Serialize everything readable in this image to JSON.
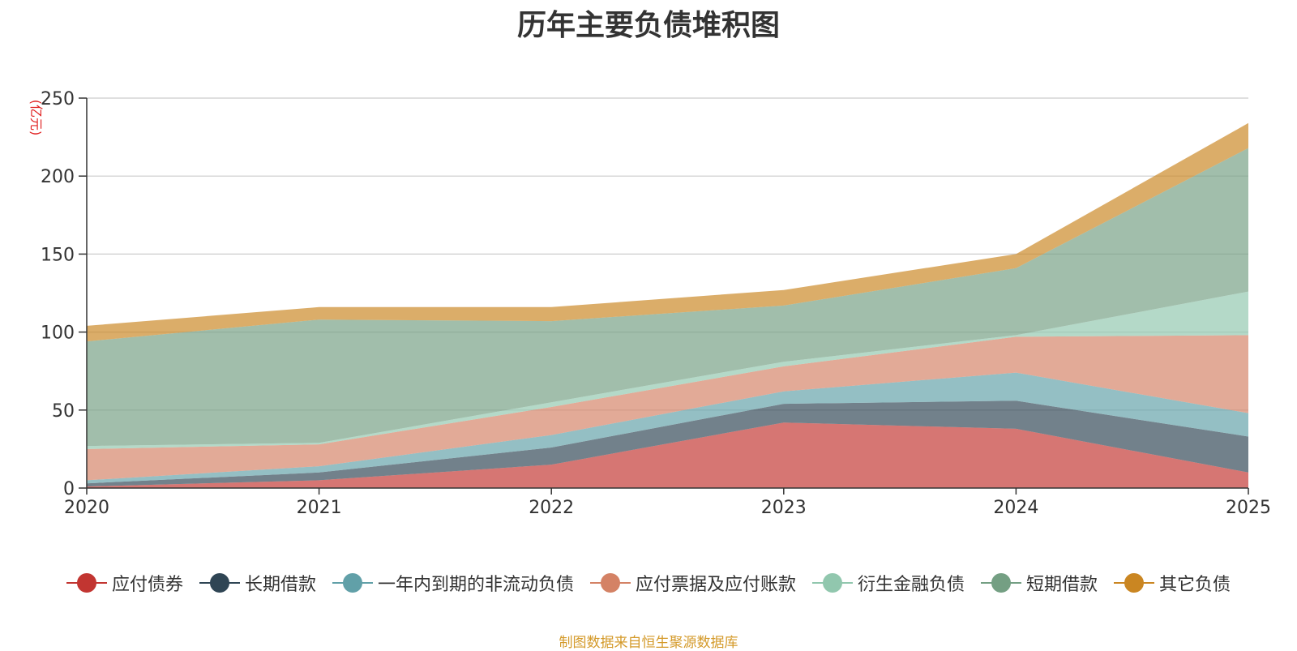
{
  "chart_data": {
    "type": "area",
    "stacked": true,
    "title": "历年主要负债堆积图",
    "unit_label": "(亿元)",
    "x": [
      "2020",
      "2021",
      "2022",
      "2023",
      "2024",
      "2025"
    ],
    "yticks": [
      "0",
      "50",
      "100",
      "150",
      "200",
      "250"
    ],
    "ylim": [
      0,
      250
    ],
    "grid": true,
    "legend_position": "bottom",
    "series": [
      {
        "name": "应付债券",
        "color": "#c23531",
        "values": [
          1,
          5,
          15,
          42,
          38,
          10
        ]
      },
      {
        "name": "长期借款",
        "color": "#2f4554",
        "values": [
          2,
          5,
          11,
          12,
          18,
          23
        ]
      },
      {
        "name": "一年内到期的非流动负债",
        "color": "#61a0a8",
        "values": [
          2,
          4,
          8,
          8,
          18,
          15
        ]
      },
      {
        "name": "应付票据及应付账款",
        "color": "#d48265",
        "values": [
          20,
          14,
          18,
          16,
          23,
          50
        ]
      },
      {
        "name": "衍生金融负债",
        "color": "#91c7ae",
        "values": [
          2,
          1,
          3,
          3,
          1,
          28
        ]
      },
      {
        "name": "短期借款",
        "color": "#749f83",
        "values": [
          67,
          79,
          52,
          36,
          43,
          92
        ]
      },
      {
        "name": "其它负债",
        "color": "#ca8622",
        "values": [
          10,
          8,
          9,
          10,
          9,
          16
        ]
      }
    ]
  },
  "footer": {
    "source": "制图数据来自恒生聚源数据库"
  }
}
